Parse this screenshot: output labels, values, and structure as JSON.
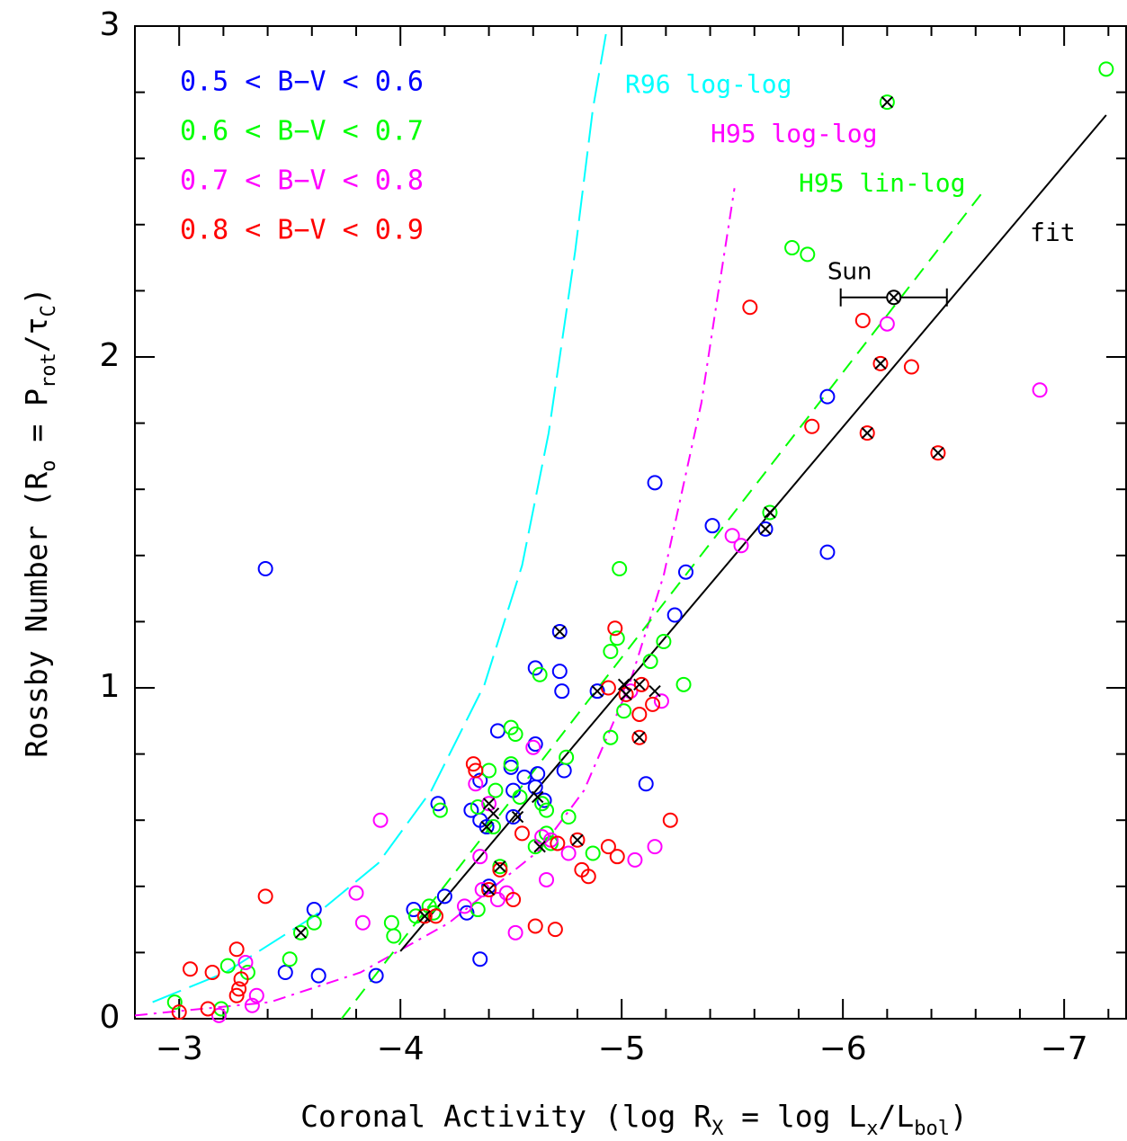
{
  "chart_data": {
    "type": "scatter",
    "xlabel": [
      "Coronal Activity (log R",
      "X",
      " = log L",
      "x",
      "/L",
      "bol",
      ")"
    ],
    "ylabel": [
      "Rossby Number (R",
      "o",
      " = P",
      "rot",
      "/τ",
      "C",
      ")"
    ],
    "xlim": [
      -2.8,
      -7.28
    ],
    "ylim": [
      0,
      3
    ],
    "xticks": [
      {
        "value": -3,
        "label": "−3"
      },
      {
        "value": -4,
        "label": "−4"
      },
      {
        "value": -5,
        "label": "−5"
      },
      {
        "value": -6,
        "label": "−6"
      },
      {
        "value": -7,
        "label": "−7"
      }
    ],
    "xminorticks": [
      -3.2,
      -3.4,
      -3.6,
      -3.8,
      -4.2,
      -4.4,
      -4.6,
      -4.8,
      -5.2,
      -5.4,
      -5.6,
      -5.8,
      -6.2,
      -6.4,
      -6.6,
      -6.8,
      -7.2
    ],
    "yticks": [
      0,
      1,
      2,
      3
    ],
    "yminorticks": [
      0.2,
      0.4,
      0.6,
      0.8,
      1.2,
      1.4,
      1.6,
      1.8,
      2.2,
      2.4,
      2.6,
      2.8
    ],
    "series": [
      {
        "name": "0.5 < B−V < 0.6",
        "color": "#0000ff",
        "x": [
          -3.39,
          -3.61,
          -3.48,
          -3.63,
          -3.89,
          -4.06,
          -4.17,
          -4.2,
          -4.3,
          -4.32,
          -4.36,
          -4.36,
          -4.44,
          -4.5,
          -4.51,
          -4.51,
          -4.56,
          -4.61,
          -4.61,
          -4.62,
          -4.65,
          -4.61,
          -4.72,
          -4.72,
          -4.73,
          -4.74,
          -4.89,
          -5.11,
          -5.15,
          -5.24,
          -5.29,
          -5.41,
          -5.65,
          -5.93,
          -5.93,
          -4.36,
          -4.39,
          -4.4
        ],
        "values": [
          1.36,
          0.33,
          0.14,
          0.13,
          0.13,
          0.33,
          0.65,
          0.37,
          0.32,
          0.63,
          0.6,
          0.72,
          0.87,
          0.76,
          0.69,
          0.61,
          0.73,
          0.7,
          0.83,
          0.74,
          0.66,
          1.06,
          1.05,
          1.17,
          0.99,
          0.75,
          0.99,
          0.71,
          1.62,
          1.22,
          1.35,
          1.49,
          1.48,
          1.88,
          1.41,
          0.18,
          0.58,
          0.4
        ]
      },
      {
        "name": "0.6 < B−V < 0.7",
        "color": "#00ff00",
        "x": [
          -2.98,
          -3.19,
          -3.22,
          -3.31,
          -3.5,
          -3.61,
          -3.55,
          -3.96,
          -3.97,
          -4.07,
          -4.13,
          -4.15,
          -4.18,
          -4.35,
          -4.35,
          -4.4,
          -4.42,
          -4.43,
          -4.5,
          -4.52,
          -4.54,
          -4.5,
          -4.61,
          -4.63,
          -4.64,
          -4.66,
          -4.66,
          -4.68,
          -4.75,
          -4.76,
          -4.87,
          -4.95,
          -4.95,
          -4.98,
          -4.99,
          -5.01,
          -5.13,
          -5.19,
          -5.28,
          -5.67,
          -5.77,
          -5.84,
          -6.2,
          -7.19,
          -4.45
        ],
        "values": [
          0.05,
          0.03,
          0.16,
          0.14,
          0.18,
          0.29,
          0.26,
          0.29,
          0.25,
          0.31,
          0.34,
          0.32,
          0.63,
          0.64,
          0.33,
          0.75,
          0.58,
          0.69,
          0.88,
          0.86,
          0.67,
          0.77,
          0.52,
          1.04,
          0.65,
          0.56,
          0.63,
          0.53,
          0.79,
          0.61,
          0.5,
          0.85,
          1.11,
          1.15,
          1.36,
          0.93,
          1.08,
          1.14,
          1.01,
          1.53,
          2.33,
          2.31,
          2.77,
          2.87,
          0.46
        ]
      },
      {
        "name": "0.7 < B−V < 0.8",
        "color": "#ff00ff",
        "x": [
          -3.18,
          -3.33,
          -3.35,
          -3.3,
          -3.8,
          -3.83,
          -3.91,
          -4.29,
          -4.36,
          -4.37,
          -4.4,
          -4.44,
          -4.48,
          -4.52,
          -4.6,
          -4.64,
          -4.66,
          -4.68,
          -4.76,
          -5.04,
          -5.06,
          -5.15,
          -5.18,
          -5.5,
          -5.54,
          -6.2,
          -6.89,
          -4.34
        ],
        "values": [
          0.01,
          0.04,
          0.07,
          0.17,
          0.38,
          0.29,
          0.6,
          0.34,
          0.49,
          0.39,
          0.65,
          0.36,
          0.38,
          0.26,
          0.82,
          0.55,
          0.42,
          0.54,
          0.5,
          0.99,
          0.48,
          0.52,
          0.96,
          1.46,
          1.43,
          2.1,
          1.9,
          0.71
        ]
      },
      {
        "name": "0.8 < B−V < 0.9",
        "color": "#ff0000",
        "x": [
          -3.0,
          -3.05,
          -3.13,
          -3.15,
          -3.26,
          -3.27,
          -3.28,
          -3.26,
          -3.39,
          -4.16,
          -4.11,
          -4.33,
          -4.34,
          -4.4,
          -4.45,
          -4.51,
          -4.55,
          -4.61,
          -4.7,
          -4.71,
          -4.8,
          -4.82,
          -4.85,
          -4.94,
          -4.97,
          -4.98,
          -5.02,
          -5.08,
          -5.08,
          -5.09,
          -5.14,
          -5.22,
          -5.58,
          -5.86,
          -6.09,
          -6.11,
          -6.17,
          -6.31,
          -6.43,
          -4.94
        ],
        "values": [
          0.02,
          0.15,
          0.03,
          0.14,
          0.21,
          0.09,
          0.12,
          0.07,
          0.37,
          0.31,
          0.31,
          0.77,
          0.75,
          0.39,
          0.45,
          0.36,
          0.56,
          0.28,
          0.27,
          0.53,
          0.54,
          0.45,
          0.43,
          0.52,
          1.18,
          0.49,
          0.98,
          0.92,
          0.85,
          1.01,
          0.95,
          0.6,
          2.15,
          1.79,
          2.11,
          1.77,
          1.98,
          1.97,
          1.71,
          1.0
        ]
      }
    ],
    "crossed_points": {
      "x": [
        -3.55,
        -4.11,
        -4.39,
        -4.4,
        -4.42,
        -4.4,
        -4.45,
        -4.53,
        -4.62,
        -4.63,
        -4.8,
        -4.72,
        -4.89,
        -5.01,
        -5.02,
        -5.08,
        -5.15,
        -5.08,
        -5.65,
        -5.67,
        -6.11,
        -6.17,
        -6.2,
        -6.43
      ],
      "values": [
        0.26,
        0.31,
        0.58,
        0.65,
        0.62,
        0.39,
        0.46,
        0.61,
        0.67,
        0.52,
        0.54,
        1.17,
        0.99,
        1.01,
        0.98,
        1.01,
        0.99,
        0.85,
        1.48,
        1.53,
        1.77,
        1.98,
        2.77,
        1.71
      ]
    },
    "sun": {
      "label": "Sun",
      "x": -6.23,
      "y": 2.18,
      "xerr": 0.24
    },
    "lines": [
      {
        "name": "R96 log-log",
        "color": "#00ffff",
        "style": "longdash",
        "x": [
          -2.88,
          -3.21,
          -3.61,
          -3.9,
          -4.14,
          -4.38,
          -4.55,
          -4.67,
          -4.79,
          -4.87,
          -4.93
        ],
        "values": [
          0.05,
          0.14,
          0.31,
          0.47,
          0.69,
          1.01,
          1.37,
          1.77,
          2.32,
          2.75,
          2.98
        ]
      },
      {
        "name": "H95 log-log",
        "color": "#ff00ff",
        "style": "dashdot",
        "x": [
          -2.8,
          -3.41,
          -3.82,
          -4.22,
          -4.63,
          -4.83,
          -5.03,
          -5.19,
          -5.36,
          -5.44,
          -5.51
        ],
        "values": [
          0.01,
          0.05,
          0.14,
          0.29,
          0.51,
          0.69,
          1.0,
          1.34,
          1.86,
          2.21,
          2.51
        ]
      },
      {
        "name": "H95 lin-log",
        "color": "#00ff00",
        "style": "dash",
        "x": [
          -3.734,
          -6.643
        ],
        "values": [
          0,
          2.508
        ]
      },
      {
        "name": "fit",
        "color": "#000000",
        "style": "solid",
        "x": [
          -4.0,
          -7.19
        ],
        "values": [
          0.204,
          2.731
        ]
      }
    ]
  }
}
